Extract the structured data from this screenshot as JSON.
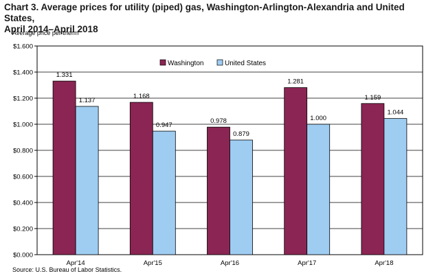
{
  "header": {
    "title_line1": "Chart 3. Average prices for utility (piped) gas, Washington-Arlington-Alexandria and United States,",
    "title_line2": "April 2014–April 2018",
    "ylabel": "Average price per therm"
  },
  "footer": {
    "source": "Source: U.S. Bureau of Labor Statistics."
  },
  "chart_data": {
    "type": "bar",
    "title": "Chart 3. Average prices for utility (piped) gas, Washington-Arlington-Alexandria and United States, April 2014–April 2018",
    "ylabel": "Average price per therm",
    "xlabel": "",
    "categories": [
      "Apr'14",
      "Apr'15",
      "Apr'16",
      "Apr'17",
      "Apr'18"
    ],
    "series": [
      {
        "name": "Washington",
        "values": [
          1.331,
          1.168,
          0.978,
          1.281,
          1.159
        ],
        "labels": [
          "1.331",
          "1.168",
          "0.978",
          "1.281",
          "1.159"
        ],
        "color": "#8b2553"
      },
      {
        "name": "United States",
        "values": [
          1.137,
          0.947,
          0.879,
          1.0,
          1.044
        ],
        "labels": [
          "1.137",
          "0.947",
          "0.879",
          "1.000",
          "1.044"
        ],
        "color": "#9fcdf2"
      }
    ],
    "ylim": [
      0,
      1.6
    ],
    "yticks": [
      0,
      0.2,
      0.4,
      0.6,
      0.8,
      1.0,
      1.2,
      1.4,
      1.6
    ],
    "ytick_labels": [
      "$0.000",
      "$0.200",
      "$0.400",
      "$0.600",
      "$0.800",
      "$1.000",
      "$1.200",
      "$1.400",
      "$1.600"
    ],
    "grid": true,
    "legend_position": "top-center"
  }
}
